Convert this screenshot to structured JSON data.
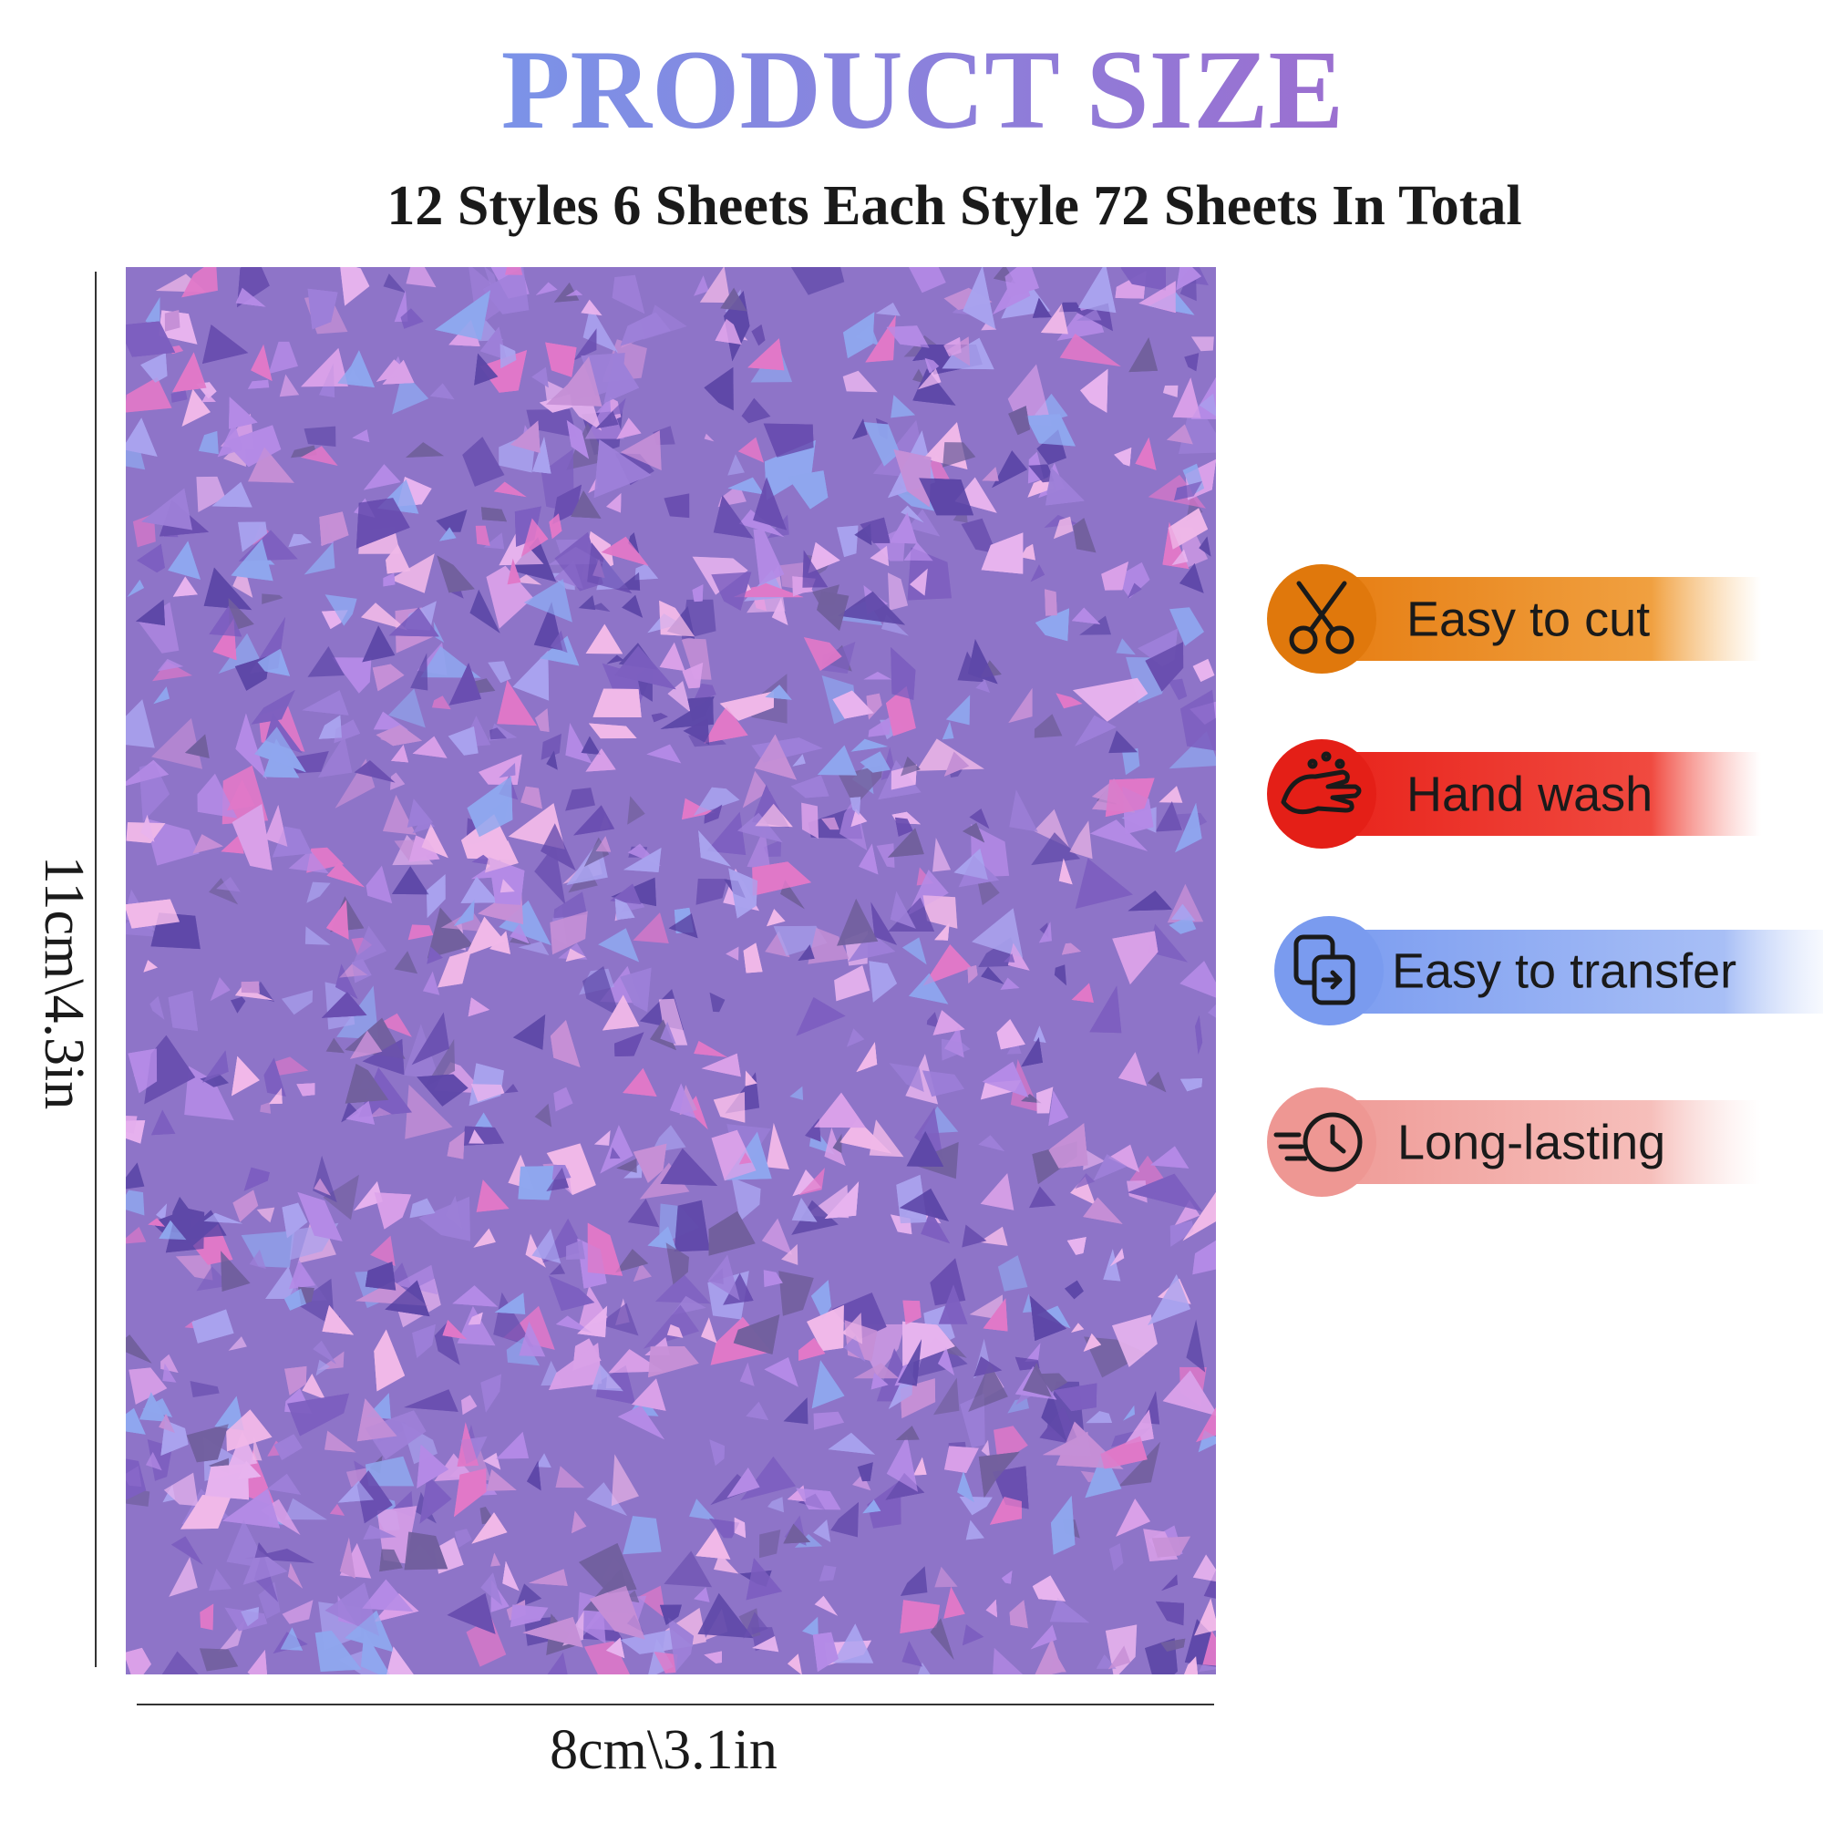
{
  "header": {
    "title": "PRODUCT SIZE",
    "subtitle": "12 Styles 6 Sheets Each Style 72 Sheets In Total"
  },
  "dimensions": {
    "height": "11cm\\4.3in",
    "width": "8cm\\3.1in"
  },
  "features": [
    "Easy to cut",
    "Hand wash",
    "Easy to transfer",
    "Long-lasting"
  ]
}
